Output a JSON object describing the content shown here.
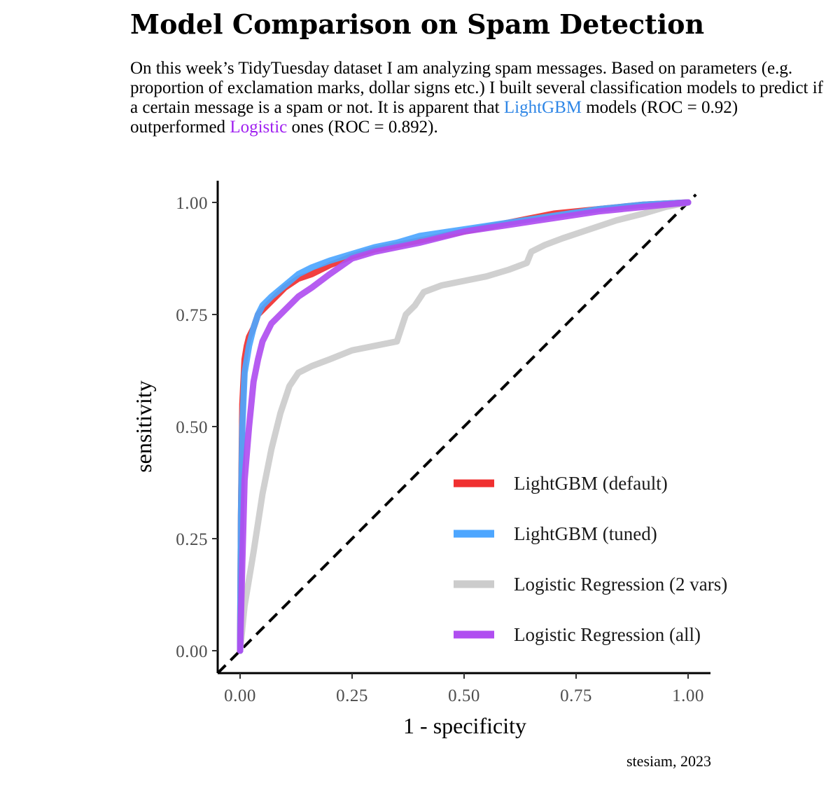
{
  "header": {
    "title": "Model Comparison on Spam Detection",
    "subtitle_parts": [
      "On this week’s TidyTuesday dataset I am analyzing spam messages. Based on parameters (e.g. proportion of exclamation marks, dollar signs etc.) I built several classification models to predict if a certain message is a spam or not. It is apparent that ",
      "LightGBM",
      " models (ROC = 0.92) outperformed ",
      "Logistic",
      " ones (ROC = 0.892)."
    ]
  },
  "caption": "stesiam, 2023",
  "colors": {
    "lightgbm_highlight": "#2e86e6",
    "logistic_highlight": "#a020f0"
  },
  "chart_data": {
    "type": "line",
    "xlabel": "1 - specificity",
    "ylabel": "sensitivity",
    "xlim": [
      0,
      1
    ],
    "ylim": [
      0,
      1
    ],
    "x_ticks": [
      "0.00",
      "0.25",
      "0.50",
      "0.75",
      "1.00"
    ],
    "y_ticks": [
      "0.00",
      "0.25",
      "0.50",
      "0.75",
      "1.00"
    ],
    "grid": false,
    "legend_position": "bottom-right",
    "reference_line": {
      "style": "dashed",
      "from": [
        0,
        0
      ],
      "to": [
        1,
        1
      ],
      "color": "#000000"
    },
    "series": [
      {
        "name": "LightGBM (default)",
        "color": "#f03030",
        "points": [
          [
            0,
            0
          ],
          [
            0.002,
            0.3
          ],
          [
            0.005,
            0.55
          ],
          [
            0.01,
            0.65
          ],
          [
            0.015,
            0.68
          ],
          [
            0.02,
            0.7
          ],
          [
            0.03,
            0.72
          ],
          [
            0.04,
            0.75
          ],
          [
            0.06,
            0.77
          ],
          [
            0.08,
            0.79
          ],
          [
            0.1,
            0.81
          ],
          [
            0.13,
            0.83
          ],
          [
            0.16,
            0.84
          ],
          [
            0.2,
            0.86
          ],
          [
            0.25,
            0.88
          ],
          [
            0.3,
            0.895
          ],
          [
            0.35,
            0.905
          ],
          [
            0.4,
            0.915
          ],
          [
            0.5,
            0.935
          ],
          [
            0.6,
            0.955
          ],
          [
            0.7,
            0.975
          ],
          [
            0.8,
            0.985
          ],
          [
            0.9,
            0.995
          ],
          [
            1,
            1
          ]
        ]
      },
      {
        "name": "LightGBM (tuned)",
        "color": "#4da6ff",
        "points": [
          [
            0,
            0
          ],
          [
            0.002,
            0.3
          ],
          [
            0.005,
            0.5
          ],
          [
            0.01,
            0.62
          ],
          [
            0.02,
            0.68
          ],
          [
            0.03,
            0.72
          ],
          [
            0.04,
            0.75
          ],
          [
            0.05,
            0.77
          ],
          [
            0.07,
            0.79
          ],
          [
            0.1,
            0.815
          ],
          [
            0.13,
            0.84
          ],
          [
            0.16,
            0.855
          ],
          [
            0.2,
            0.87
          ],
          [
            0.25,
            0.885
          ],
          [
            0.3,
            0.9
          ],
          [
            0.35,
            0.91
          ],
          [
            0.4,
            0.925
          ],
          [
            0.5,
            0.94
          ],
          [
            0.6,
            0.955
          ],
          [
            0.7,
            0.97
          ],
          [
            0.8,
            0.985
          ],
          [
            0.9,
            0.995
          ],
          [
            1,
            1
          ]
        ]
      },
      {
        "name": "Logistic Regression (2 vars)",
        "color": "#cccccc",
        "points": [
          [
            0,
            0
          ],
          [
            0.01,
            0.1
          ],
          [
            0.03,
            0.22
          ],
          [
            0.05,
            0.35
          ],
          [
            0.07,
            0.45
          ],
          [
            0.09,
            0.53
          ],
          [
            0.11,
            0.59
          ],
          [
            0.13,
            0.62
          ],
          [
            0.16,
            0.635
          ],
          [
            0.2,
            0.65
          ],
          [
            0.25,
            0.67
          ],
          [
            0.3,
            0.68
          ],
          [
            0.35,
            0.69
          ],
          [
            0.36,
            0.72
          ],
          [
            0.37,
            0.75
          ],
          [
            0.39,
            0.77
          ],
          [
            0.41,
            0.8
          ],
          [
            0.45,
            0.815
          ],
          [
            0.5,
            0.825
          ],
          [
            0.55,
            0.835
          ],
          [
            0.6,
            0.85
          ],
          [
            0.64,
            0.865
          ],
          [
            0.65,
            0.89
          ],
          [
            0.68,
            0.905
          ],
          [
            0.72,
            0.92
          ],
          [
            0.78,
            0.94
          ],
          [
            0.84,
            0.96
          ],
          [
            0.9,
            0.975
          ],
          [
            0.95,
            0.99
          ],
          [
            1,
            1
          ]
        ]
      },
      {
        "name": "Logistic Regression (all)",
        "color": "#b04ef0",
        "points": [
          [
            0,
            0
          ],
          [
            0.005,
            0.2
          ],
          [
            0.01,
            0.38
          ],
          [
            0.02,
            0.5
          ],
          [
            0.03,
            0.6
          ],
          [
            0.04,
            0.65
          ],
          [
            0.05,
            0.69
          ],
          [
            0.07,
            0.73
          ],
          [
            0.1,
            0.76
          ],
          [
            0.13,
            0.79
          ],
          [
            0.16,
            0.81
          ],
          [
            0.2,
            0.84
          ],
          [
            0.25,
            0.875
          ],
          [
            0.3,
            0.89
          ],
          [
            0.35,
            0.9
          ],
          [
            0.4,
            0.91
          ],
          [
            0.5,
            0.935
          ],
          [
            0.6,
            0.95
          ],
          [
            0.7,
            0.965
          ],
          [
            0.8,
            0.98
          ],
          [
            0.9,
            0.99
          ],
          [
            1,
            1
          ]
        ]
      }
    ]
  }
}
